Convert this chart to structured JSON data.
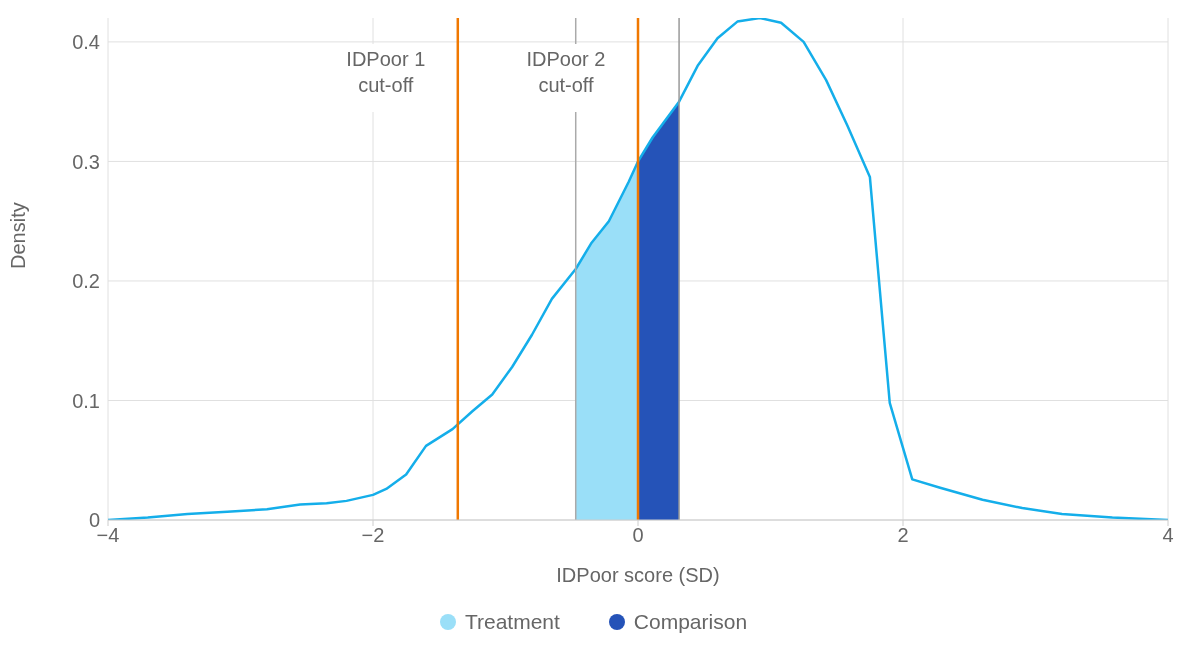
{
  "chart_data": {
    "type": "line",
    "xlabel": "IDPoor score (SD)",
    "ylabel": "Density",
    "xlim": [
      -4,
      4
    ],
    "ylim": [
      0,
      0.42
    ],
    "xticks": [
      {
        "value": -4,
        "label": "−4"
      },
      {
        "value": -2,
        "label": "−2"
      },
      0,
      2,
      4
    ],
    "yticks": [
      0,
      0.1,
      0.2,
      0.3,
      0.4
    ],
    "grid": true,
    "legend": "bottom",
    "marker": "none",
    "series": [
      {
        "type": "area",
        "name": "Treatment",
        "color": "#9adff8",
        "x": [
          -0.47,
          -0.35,
          -0.22,
          -0.07,
          0
        ],
        "values": [
          0.21,
          0.232,
          0.25,
          0.283,
          0.3
        ]
      },
      {
        "type": "area",
        "name": "Comparison",
        "color": "#2553b8",
        "x": [
          0,
          0.11,
          0.31
        ],
        "values": [
          0.3,
          0.32,
          0.35
        ]
      },
      {
        "color": "#14aeea",
        "x": [
          -4,
          -3.7,
          -3.4,
          -3.1,
          -2.8,
          -2.55,
          -2.35,
          -2.2,
          -2.0,
          -1.9,
          -1.75,
          -1.6,
          -1.4,
          -1.25,
          -1.1,
          -0.95,
          -0.8,
          -0.65,
          -0.47,
          -0.35,
          -0.22,
          -0.07,
          0,
          0.11,
          0.31,
          0.45,
          0.6,
          0.75,
          0.92,
          1.08,
          1.25,
          1.42,
          1.58,
          1.75,
          1.9,
          2.07,
          2.28,
          2.6,
          2.9,
          3.2,
          3.58,
          4
        ],
        "values": [
          0,
          0.002,
          0.005,
          0.007,
          0.009,
          0.013,
          0.014,
          0.016,
          0.021,
          0.026,
          0.038,
          0.062,
          0.076,
          0.091,
          0.105,
          0.128,
          0.155,
          0.185,
          0.21,
          0.232,
          0.25,
          0.283,
          0.3,
          0.32,
          0.35,
          0.38,
          0.403,
          0.417,
          0.42,
          0.416,
          0.4,
          0.368,
          0.33,
          0.287,
          0.098,
          0.034,
          0.027,
          0.017,
          0.01,
          0.005,
          0.002,
          0
        ]
      }
    ],
    "ref_lines": [
      {
        "axis": "x",
        "value": -1.36,
        "label": "IDPoor 1\ncut-off",
        "color": "#f07800"
      },
      {
        "axis": "x",
        "value": 0,
        "label": "IDPoor 2\ncut-off",
        "color": "#f07800"
      },
      {
        "axis": "x",
        "value": -0.47,
        "color": "#aaaaaa"
      },
      {
        "axis": "x",
        "value": 0.31,
        "color": "#999999"
      }
    ]
  }
}
